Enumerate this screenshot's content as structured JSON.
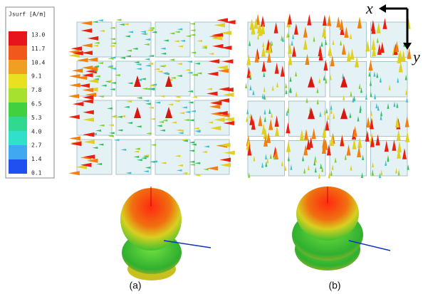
{
  "legend": {
    "title": "Jsurf [A/m]",
    "labels": [
      "13.0",
      "11.7",
      "10.4",
      "9.1",
      "7.8",
      "6.5",
      "5.3",
      "4.0",
      "2.7",
      "1.4",
      "0.1"
    ]
  },
  "axes": {
    "x": "x",
    "y": "y"
  },
  "captions": [
    "(a)",
    "(b)"
  ]
}
